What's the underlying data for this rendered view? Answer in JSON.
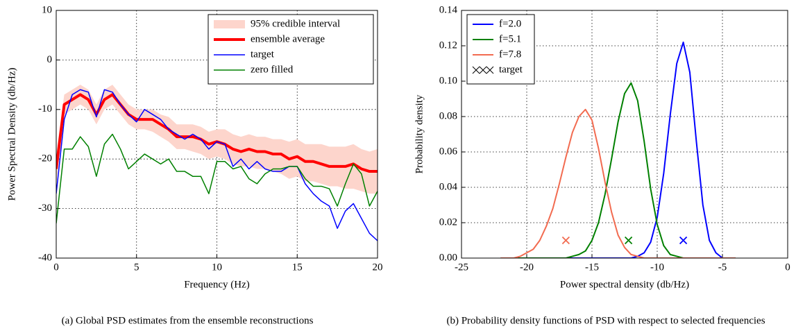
{
  "chart_data": [
    {
      "type": "line",
      "xlabel": "Frequency (Hz)",
      "ylabel": "Power Spectral Density (db/Hz)",
      "caption": "(a) Global PSD estimates from the ensemble reconstructions",
      "xlim": [
        0,
        20
      ],
      "ylim": [
        -40,
        10
      ],
      "xticks": [
        0,
        5,
        10,
        15,
        20
      ],
      "yticks": [
        -40,
        -30,
        -20,
        -10,
        0,
        10
      ],
      "grid": true,
      "legend": "upper right",
      "x": [
        0,
        0.5,
        1,
        1.5,
        2,
        2.5,
        3,
        3.5,
        4,
        4.5,
        5,
        5.5,
        6,
        6.5,
        7,
        7.5,
        8,
        8.5,
        9,
        9.5,
        10,
        10.5,
        11,
        11.5,
        12,
        12.5,
        13,
        13.5,
        14,
        14.5,
        15,
        15.5,
        16,
        16.5,
        17,
        17.5,
        18,
        18.5,
        19,
        19.5,
        20
      ],
      "series": [
        {
          "name": "95% credible interval",
          "type": "band",
          "color": "#fdd5cc",
          "lower": [
            -25,
            -11,
            -10,
            -9,
            -10,
            -13,
            -10,
            -9,
            -11,
            -13,
            -14,
            -14,
            -14.5,
            -15.5,
            -16.5,
            -18,
            -18,
            -18.5,
            -19,
            -20,
            -19.5,
            -20,
            -21,
            -21.5,
            -21.5,
            -22,
            -22,
            -22.5,
            -23,
            -24,
            -23.5,
            -24.5,
            -24.5,
            -25,
            -25.5,
            -25.5,
            -26,
            -26,
            -26.5,
            -27,
            -27
          ],
          "upper": [
            -19,
            -7,
            -6,
            -5,
            -6,
            -9,
            -6,
            -5,
            -7,
            -9,
            -10,
            -10,
            -10,
            -11,
            -11.5,
            -13,
            -13,
            -13,
            -13.5,
            -14.5,
            -14,
            -14,
            -15,
            -15.5,
            -15,
            -15.5,
            -15.5,
            -16,
            -16,
            -16.5,
            -16,
            -17,
            -17,
            -17,
            -17.5,
            -17.5,
            -17.5,
            -17,
            -18,
            -18.5,
            -18
          ]
        },
        {
          "name": "ensemble average",
          "type": "line",
          "color": "#ff0000",
          "linewidth": 4,
          "values": [
            -22,
            -9,
            -8,
            -7,
            -8,
            -11,
            -8,
            -7,
            -9,
            -11,
            -12,
            -12,
            -12,
            -13,
            -14,
            -15.5,
            -15.5,
            -15.5,
            -16,
            -17,
            -16.5,
            -17,
            -18,
            -18.5,
            -18,
            -18.5,
            -18.5,
            -19,
            -19,
            -20,
            -19.5,
            -20.5,
            -20.5,
            -21,
            -21.5,
            -21.5,
            -21.5,
            -21,
            -22,
            -22.5,
            -22.5
          ]
        },
        {
          "name": "target",
          "type": "line",
          "color": "#0000ff",
          "linewidth": 1.5,
          "values": [
            -27,
            -12,
            -7,
            -6,
            -6.5,
            -11.5,
            -6,
            -6.5,
            -9,
            -11,
            -12.5,
            -10,
            -11,
            -12,
            -14,
            -15,
            -16,
            -15,
            -16,
            -18,
            -16.5,
            -17,
            -21.5,
            -20,
            -22,
            -20.5,
            -22,
            -22.5,
            -22.5,
            -21.5,
            -21.5,
            -25,
            -27,
            -28.5,
            -29.5,
            -34,
            -30.5,
            -29,
            -32,
            -35,
            -36.5
          ]
        },
        {
          "name": "zero filled",
          "type": "line",
          "color": "#008000",
          "linewidth": 1.5,
          "values": [
            -33,
            -18,
            -18,
            -15.5,
            -17.5,
            -23.5,
            -17,
            -15,
            -18,
            -22,
            -20.5,
            -19,
            -20,
            -21,
            -20,
            -22.5,
            -22.5,
            -23.5,
            -23.5,
            -27,
            -20.5,
            -20.5,
            -22,
            -21.5,
            -24,
            -25,
            -23,
            -22,
            -22,
            -21.5,
            -21.5,
            -24,
            -25.5,
            -25.5,
            -26,
            -29.5,
            -25,
            -21,
            -23,
            -29.5,
            -26.5
          ]
        }
      ]
    },
    {
      "type": "line",
      "xlabel": "Power spectral density (db/Hz)",
      "ylabel": "Probability density",
      "caption": "(b) Probability density functions of PSD with respect to selected frequencies",
      "xlim": [
        -25,
        0
      ],
      "ylim": [
        0,
        0.14
      ],
      "xticks": [
        -25,
        -20,
        -15,
        -10,
        -5,
        0
      ],
      "yticks": [
        {
          "value": 0,
          "label": "0.00"
        },
        0.02,
        0.04,
        0.06,
        0.08,
        {
          "value": 0.1,
          "label": "0.10"
        },
        0.12,
        0.14
      ],
      "grid": true,
      "legend": "upper left",
      "x": [
        -22,
        -21.5,
        -21,
        -20.5,
        -20,
        -19.5,
        -19,
        -18.5,
        -18,
        -17.5,
        -17,
        -16.5,
        -16,
        -15.5,
        -15,
        -14.5,
        -14,
        -13.5,
        -13,
        -12.5,
        -12,
        -11.5,
        -11,
        -10.5,
        -10,
        -9.5,
        -9,
        -8.5,
        -8,
        -7.5,
        -7,
        -6.5,
        -6,
        -5.5,
        -5,
        -4.5,
        -4
      ],
      "series": [
        {
          "name": "f=2.0",
          "type": "line",
          "color": "#0000ff",
          "linewidth": 2,
          "values": [
            0,
            0,
            0,
            0,
            0,
            0,
            0,
            0,
            0,
            0,
            0,
            0,
            0,
            0,
            0,
            0,
            0,
            0,
            0,
            0,
            0,
            0.001,
            0.003,
            0.009,
            0.023,
            0.048,
            0.081,
            0.11,
            0.122,
            0.105,
            0.066,
            0.03,
            0.01,
            0.003,
            0,
            0,
            0
          ]
        },
        {
          "name": "f=5.1",
          "type": "line",
          "color": "#008000",
          "linewidth": 2,
          "values": [
            0,
            0,
            0,
            0,
            0,
            0,
            0,
            0,
            0,
            0,
            0,
            0.001,
            0.002,
            0.004,
            0.01,
            0.02,
            0.036,
            0.056,
            0.077,
            0.093,
            0.099,
            0.089,
            0.066,
            0.039,
            0.019,
            0.007,
            0.002,
            0.001,
            0,
            0,
            0,
            0,
            0,
            0,
            0,
            0,
            0
          ]
        },
        {
          "name": "f=7.8",
          "type": "line",
          "color": "#f26b50",
          "linewidth": 2,
          "values": [
            0,
            0,
            0,
            0.001,
            0.003,
            0.005,
            0.01,
            0.018,
            0.028,
            0.042,
            0.057,
            0.071,
            0.08,
            0.084,
            0.078,
            0.062,
            0.043,
            0.026,
            0.013,
            0.006,
            0.002,
            0.001,
            0,
            0,
            0,
            0,
            0,
            0,
            0,
            0,
            0,
            0,
            0,
            0,
            0,
            0,
            0
          ]
        }
      ],
      "markers": {
        "name": "target",
        "x": [
          -17,
          -12.2,
          -8
        ],
        "y": [
          0.01,
          0.01,
          0.01
        ],
        "colors": [
          "#f26b50",
          "#008000",
          "#0000ff"
        ]
      }
    }
  ]
}
